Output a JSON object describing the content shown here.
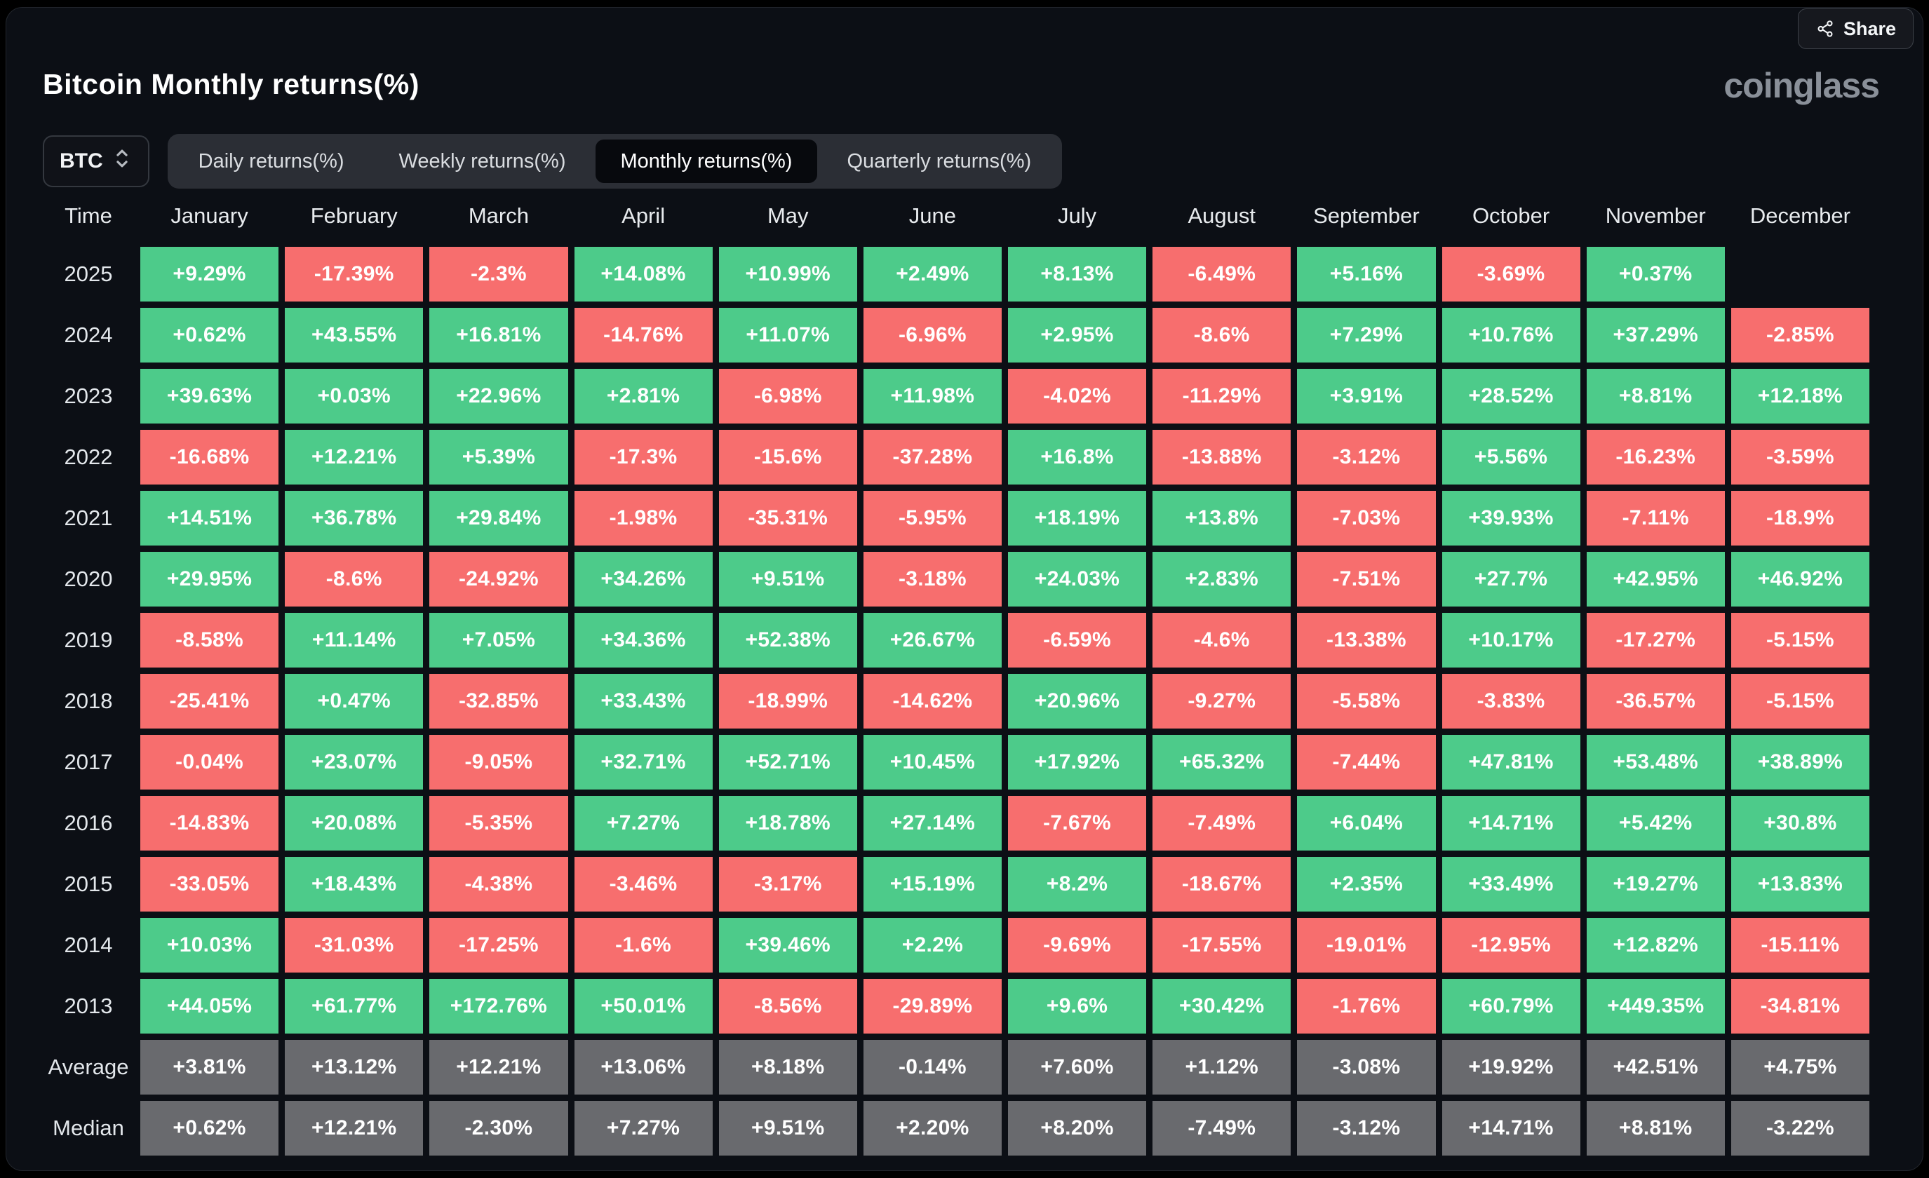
{
  "header": {
    "title": "Bitcoin Monthly returns(%)",
    "logo": "coinglass",
    "share_label": "Share"
  },
  "controls": {
    "coin": "BTC",
    "tabs": [
      {
        "label": "Daily returns(%)",
        "active": false
      },
      {
        "label": "Weekly returns(%)",
        "active": false
      },
      {
        "label": "Monthly returns(%)",
        "active": true
      },
      {
        "label": "Quarterly returns(%)",
        "active": false
      }
    ]
  },
  "colors": {
    "positive": "#4dcb8a",
    "negative": "#f76e6e",
    "summary": "#696a6e",
    "panel_bg": "#0c0f15"
  },
  "table": {
    "time_header": "Time",
    "months": [
      "January",
      "February",
      "March",
      "April",
      "May",
      "June",
      "July",
      "August",
      "September",
      "October",
      "November",
      "December"
    ],
    "rows": [
      {
        "label": "2025",
        "type": "year",
        "values": [
          "+9.29%",
          "-17.39%",
          "-2.3%",
          "+14.08%",
          "+10.99%",
          "+2.49%",
          "+8.13%",
          "-6.49%",
          "+5.16%",
          "-3.69%",
          "+0.37%",
          null
        ]
      },
      {
        "label": "2024",
        "type": "year",
        "values": [
          "+0.62%",
          "+43.55%",
          "+16.81%",
          "-14.76%",
          "+11.07%",
          "-6.96%",
          "+2.95%",
          "-8.6%",
          "+7.29%",
          "+10.76%",
          "+37.29%",
          "-2.85%"
        ]
      },
      {
        "label": "2023",
        "type": "year",
        "values": [
          "+39.63%",
          "+0.03%",
          "+22.96%",
          "+2.81%",
          "-6.98%",
          "+11.98%",
          "-4.02%",
          "-11.29%",
          "+3.91%",
          "+28.52%",
          "+8.81%",
          "+12.18%"
        ]
      },
      {
        "label": "2022",
        "type": "year",
        "values": [
          "-16.68%",
          "+12.21%",
          "+5.39%",
          "-17.3%",
          "-15.6%",
          "-37.28%",
          "+16.8%",
          "-13.88%",
          "-3.12%",
          "+5.56%",
          "-16.23%",
          "-3.59%"
        ]
      },
      {
        "label": "2021",
        "type": "year",
        "values": [
          "+14.51%",
          "+36.78%",
          "+29.84%",
          "-1.98%",
          "-35.31%",
          "-5.95%",
          "+18.19%",
          "+13.8%",
          "-7.03%",
          "+39.93%",
          "-7.11%",
          "-18.9%"
        ]
      },
      {
        "label": "2020",
        "type": "year",
        "values": [
          "+29.95%",
          "-8.6%",
          "-24.92%",
          "+34.26%",
          "+9.51%",
          "-3.18%",
          "+24.03%",
          "+2.83%",
          "-7.51%",
          "+27.7%",
          "+42.95%",
          "+46.92%"
        ]
      },
      {
        "label": "2019",
        "type": "year",
        "values": [
          "-8.58%",
          "+11.14%",
          "+7.05%",
          "+34.36%",
          "+52.38%",
          "+26.67%",
          "-6.59%",
          "-4.6%",
          "-13.38%",
          "+10.17%",
          "-17.27%",
          "-5.15%"
        ]
      },
      {
        "label": "2018",
        "type": "year",
        "values": [
          "-25.41%",
          "+0.47%",
          "-32.85%",
          "+33.43%",
          "-18.99%",
          "-14.62%",
          "+20.96%",
          "-9.27%",
          "-5.58%",
          "-3.83%",
          "-36.57%",
          "-5.15%"
        ]
      },
      {
        "label": "2017",
        "type": "year",
        "values": [
          "-0.04%",
          "+23.07%",
          "-9.05%",
          "+32.71%",
          "+52.71%",
          "+10.45%",
          "+17.92%",
          "+65.32%",
          "-7.44%",
          "+47.81%",
          "+53.48%",
          "+38.89%"
        ]
      },
      {
        "label": "2016",
        "type": "year",
        "values": [
          "-14.83%",
          "+20.08%",
          "-5.35%",
          "+7.27%",
          "+18.78%",
          "+27.14%",
          "-7.67%",
          "-7.49%",
          "+6.04%",
          "+14.71%",
          "+5.42%",
          "+30.8%"
        ]
      },
      {
        "label": "2015",
        "type": "year",
        "values": [
          "-33.05%",
          "+18.43%",
          "-4.38%",
          "-3.46%",
          "-3.17%",
          "+15.19%",
          "+8.2%",
          "-18.67%",
          "+2.35%",
          "+33.49%",
          "+19.27%",
          "+13.83%"
        ]
      },
      {
        "label": "2014",
        "type": "year",
        "values": [
          "+10.03%",
          "-31.03%",
          "-17.25%",
          "-1.6%",
          "+39.46%",
          "+2.2%",
          "-9.69%",
          "-17.55%",
          "-19.01%",
          "-12.95%",
          "+12.82%",
          "-15.11%"
        ]
      },
      {
        "label": "2013",
        "type": "year",
        "values": [
          "+44.05%",
          "+61.77%",
          "+172.76%",
          "+50.01%",
          "-8.56%",
          "-29.89%",
          "+9.6%",
          "+30.42%",
          "-1.76%",
          "+60.79%",
          "+449.35%",
          "-34.81%"
        ]
      },
      {
        "label": "Average",
        "type": "summary",
        "values": [
          "+3.81%",
          "+13.12%",
          "+12.21%",
          "+13.06%",
          "+8.18%",
          "-0.14%",
          "+7.60%",
          "+1.12%",
          "-3.08%",
          "+19.92%",
          "+42.51%",
          "+4.75%"
        ]
      },
      {
        "label": "Median",
        "type": "summary",
        "values": [
          "+0.62%",
          "+12.21%",
          "-2.30%",
          "+7.27%",
          "+9.51%",
          "+2.20%",
          "+8.20%",
          "-7.49%",
          "-3.12%",
          "+14.71%",
          "+8.81%",
          "-3.22%"
        ]
      }
    ]
  }
}
